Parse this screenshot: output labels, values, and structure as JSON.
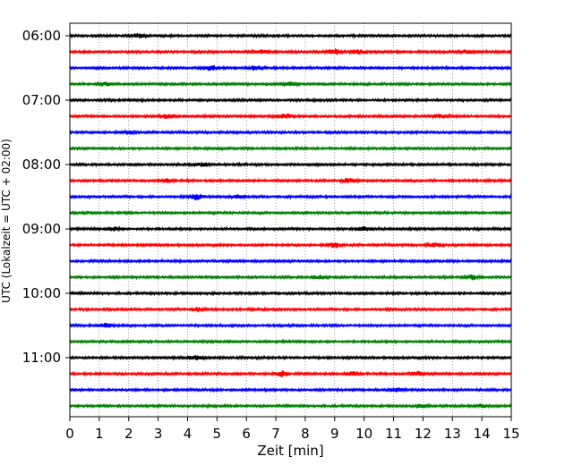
{
  "chart_data": {
    "type": "line",
    "title": "",
    "xlabel": "Zeit  [min]",
    "ylabel": "UTC (Lokalzeit = UTC + 02:00)",
    "xlim": [
      0,
      15
    ],
    "x_ticks": [
      "0",
      "1",
      "2",
      "3",
      "4",
      "5",
      "6",
      "7",
      "8",
      "9",
      "10",
      "11",
      "12",
      "13",
      "14",
      "15"
    ],
    "y_ticks": [
      "06:00",
      "07:00",
      "08:00",
      "09:00",
      "10:00",
      "11:00"
    ],
    "grid": "vertical dotted",
    "trace_interval_minutes": 15,
    "start_time": "06:00",
    "trace_count": 24,
    "trace_colors": [
      "#000000",
      "#ff0000",
      "#0000ff",
      "#008000"
    ],
    "bursts": [
      {
        "trace": 0,
        "minute": 2.3,
        "amp": 0.6
      },
      {
        "trace": 1,
        "minute": 6.5,
        "amp": 0.8
      },
      {
        "trace": 1,
        "minute": 9.0,
        "amp": 1.0
      },
      {
        "trace": 1,
        "minute": 9.8,
        "amp": 0.7
      },
      {
        "trace": 1,
        "minute": 13.5,
        "amp": 0.6
      },
      {
        "trace": 2,
        "minute": 4.8,
        "amp": 0.8
      },
      {
        "trace": 2,
        "minute": 6.3,
        "amp": 0.7
      },
      {
        "trace": 3,
        "minute": 1.2,
        "amp": 0.6
      },
      {
        "trace": 3,
        "minute": 7.5,
        "amp": 0.5
      },
      {
        "trace": 5,
        "minute": 3.3,
        "amp": 0.7
      },
      {
        "trace": 5,
        "minute": 7.3,
        "amp": 0.8
      },
      {
        "trace": 5,
        "minute": 12.6,
        "amp": 0.6
      },
      {
        "trace": 6,
        "minute": 2.0,
        "amp": 0.5
      },
      {
        "trace": 8,
        "minute": 4.5,
        "amp": 0.6
      },
      {
        "trace": 9,
        "minute": 3.3,
        "amp": 0.6
      },
      {
        "trace": 9,
        "minute": 9.5,
        "amp": 0.7
      },
      {
        "trace": 10,
        "minute": 4.3,
        "amp": 1.0
      },
      {
        "trace": 10,
        "minute": 5.7,
        "amp": 0.6
      },
      {
        "trace": 12,
        "minute": 1.5,
        "amp": 0.6
      },
      {
        "trace": 12,
        "minute": 10.0,
        "amp": 0.7
      },
      {
        "trace": 13,
        "minute": 9.0,
        "amp": 0.8
      },
      {
        "trace": 13,
        "minute": 12.4,
        "amp": 0.6
      },
      {
        "trace": 15,
        "minute": 8.5,
        "amp": 0.6
      },
      {
        "trace": 15,
        "minute": 13.7,
        "amp": 0.8
      },
      {
        "trace": 17,
        "minute": 4.4,
        "amp": 0.6
      },
      {
        "trace": 18,
        "minute": 1.2,
        "amp": 0.8
      },
      {
        "trace": 20,
        "minute": 4.3,
        "amp": 0.7
      },
      {
        "trace": 21,
        "minute": 7.2,
        "amp": 1.0
      },
      {
        "trace": 21,
        "minute": 9.6,
        "amp": 0.6
      },
      {
        "trace": 21,
        "minute": 11.8,
        "amp": 0.7
      },
      {
        "trace": 22,
        "minute": 11.1,
        "amp": 0.6
      },
      {
        "trace": 23,
        "minute": 12.0,
        "amp": 0.5
      },
      {
        "trace": 23,
        "minute": 14.0,
        "amp": 0.5
      }
    ]
  }
}
